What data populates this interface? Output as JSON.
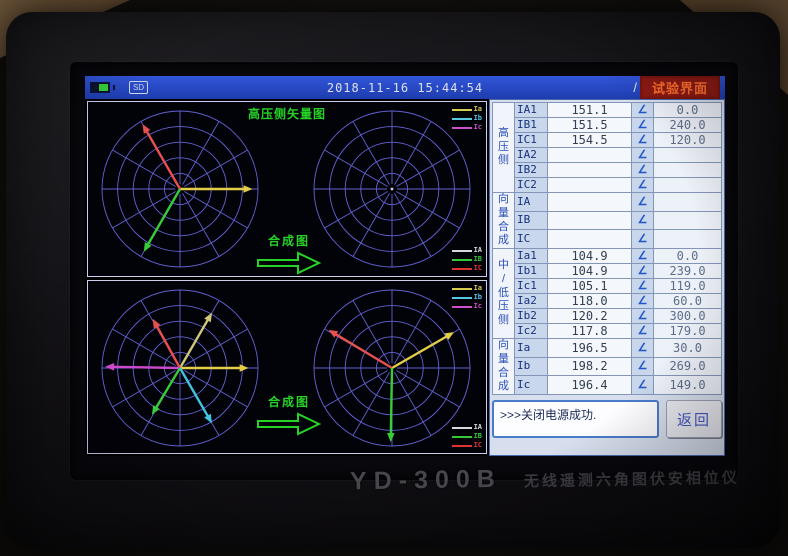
{
  "topbar": {
    "time": "2018-11-16 15:44:54",
    "divider": "/",
    "mode_label": "试验界面",
    "sd_label": "SD"
  },
  "panels": {
    "top": {
      "title": "高压侧矢量图",
      "compose_label": "合成图"
    },
    "bottom": {
      "compose_label": "合成图"
    }
  },
  "legends": {
    "upper": [
      {
        "label": "Ia",
        "color": "#d8cc50"
      },
      {
        "label": "Ib",
        "color": "#56c8e2"
      },
      {
        "label": "Ic",
        "color": "#cc52cc"
      }
    ],
    "lower": [
      {
        "label": "IA",
        "color": "#d8d8dc"
      },
      {
        "label": "IB",
        "color": "#36c836"
      },
      {
        "label": "IC",
        "color": "#e03434"
      }
    ]
  },
  "chart_data": {
    "type": "polar-vector",
    "grid": {
      "circles": 5,
      "spokes": 12,
      "color": "#6363d4"
    },
    "diagrams": {
      "hv_measured": {
        "title": "高压侧矢量图",
        "vectors": [
          {
            "name": "IA1",
            "magnitude": 151.1,
            "angle_deg": 0,
            "len": 0.93,
            "color": "#e2ce48"
          },
          {
            "name": "IC1",
            "magnitude": 154.5,
            "angle_deg": 120,
            "len": 0.96,
            "color": "#e85050"
          },
          {
            "name": "IB1",
            "magnitude": 151.5,
            "angle_deg": 240,
            "len": 0.93,
            "color": "#38cc38"
          }
        ]
      },
      "hv_composed": {
        "title": "合成图",
        "vectors": []
      },
      "lv_measured": {
        "title": "中/低压侧矢量图",
        "vectors": [
          {
            "name": "Ia1",
            "magnitude": 104.9,
            "angle_deg": 0,
            "len": 0.88,
            "color": "#e2ce48"
          },
          {
            "name": "Ia2",
            "magnitude": 118.0,
            "angle_deg": 60,
            "len": 0.82,
            "color": "#cfc878"
          },
          {
            "name": "Ic1",
            "magnitude": 105.1,
            "angle_deg": 119,
            "len": 0.72,
            "color": "#e85050"
          },
          {
            "name": "Ic2",
            "magnitude": 117.8,
            "angle_deg": 179,
            "len": 0.96,
            "color": "#cc48cc"
          },
          {
            "name": "Ib1",
            "magnitude": 104.9,
            "angle_deg": 239,
            "len": 0.7,
            "color": "#38cc38"
          },
          {
            "name": "Ib2",
            "magnitude": 120.2,
            "angle_deg": 300,
            "len": 0.82,
            "color": "#40c4e0"
          }
        ]
      },
      "lv_composed": {
        "title": "合成图",
        "vectors": [
          {
            "name": "Ia",
            "magnitude": 196.5,
            "angle_deg": 30,
            "len": 0.92,
            "color": "#e2ce48"
          },
          {
            "name": "Ic",
            "magnitude": 196.4,
            "angle_deg": 149,
            "len": 0.95,
            "color": "#e85050"
          },
          {
            "name": "Ib",
            "magnitude": 198.2,
            "angle_deg": 269,
            "len": 0.95,
            "color": "#38cc38"
          }
        ]
      }
    }
  },
  "table": {
    "angle_symbol": "∠",
    "groups": [
      {
        "label": "高\n压\n侧",
        "rows": [
          {
            "name": "IA1",
            "value": "151.1",
            "angle": "0.0"
          },
          {
            "name": "IB1",
            "value": "151.5",
            "angle": "240.0"
          },
          {
            "name": "IC1",
            "value": "154.5",
            "angle": "120.0"
          },
          {
            "name": "IA2",
            "value": "",
            "angle": ""
          },
          {
            "name": "IB2",
            "value": "",
            "angle": ""
          },
          {
            "name": "IC2",
            "value": "",
            "angle": ""
          }
        ]
      },
      {
        "label": "向量\n合成",
        "rows": [
          {
            "name": "IA",
            "value": "",
            "angle": ""
          },
          {
            "name": "IB",
            "value": "",
            "angle": ""
          },
          {
            "name": "IC",
            "value": "",
            "angle": ""
          }
        ]
      },
      {
        "label": "中\n/\n低\n压\n侧",
        "rows": [
          {
            "name": "Ia1",
            "value": "104.9",
            "angle": "0.0"
          },
          {
            "name": "Ib1",
            "value": "104.9",
            "angle": "239.0"
          },
          {
            "name": "Ic1",
            "value": "105.1",
            "angle": "119.0"
          },
          {
            "name": "Ia2",
            "value": "118.0",
            "angle": "60.0"
          },
          {
            "name": "Ib2",
            "value": "120.2",
            "angle": "300.0"
          },
          {
            "name": "Ic2",
            "value": "117.8",
            "angle": "179.0"
          }
        ]
      },
      {
        "label": "向量\n合成",
        "rows": [
          {
            "name": "Ia",
            "value": "196.5",
            "angle": "30.0"
          },
          {
            "name": "Ib",
            "value": "198.2",
            "angle": "269.0"
          },
          {
            "name": "Ic",
            "value": "196.4",
            "angle": "149.0"
          }
        ]
      }
    ]
  },
  "message": ">>>关闭电源成功.",
  "back_button": "返回",
  "brand": {
    "model": "YD-300B",
    "name": "无线遥测六角图伏安相位仪"
  }
}
